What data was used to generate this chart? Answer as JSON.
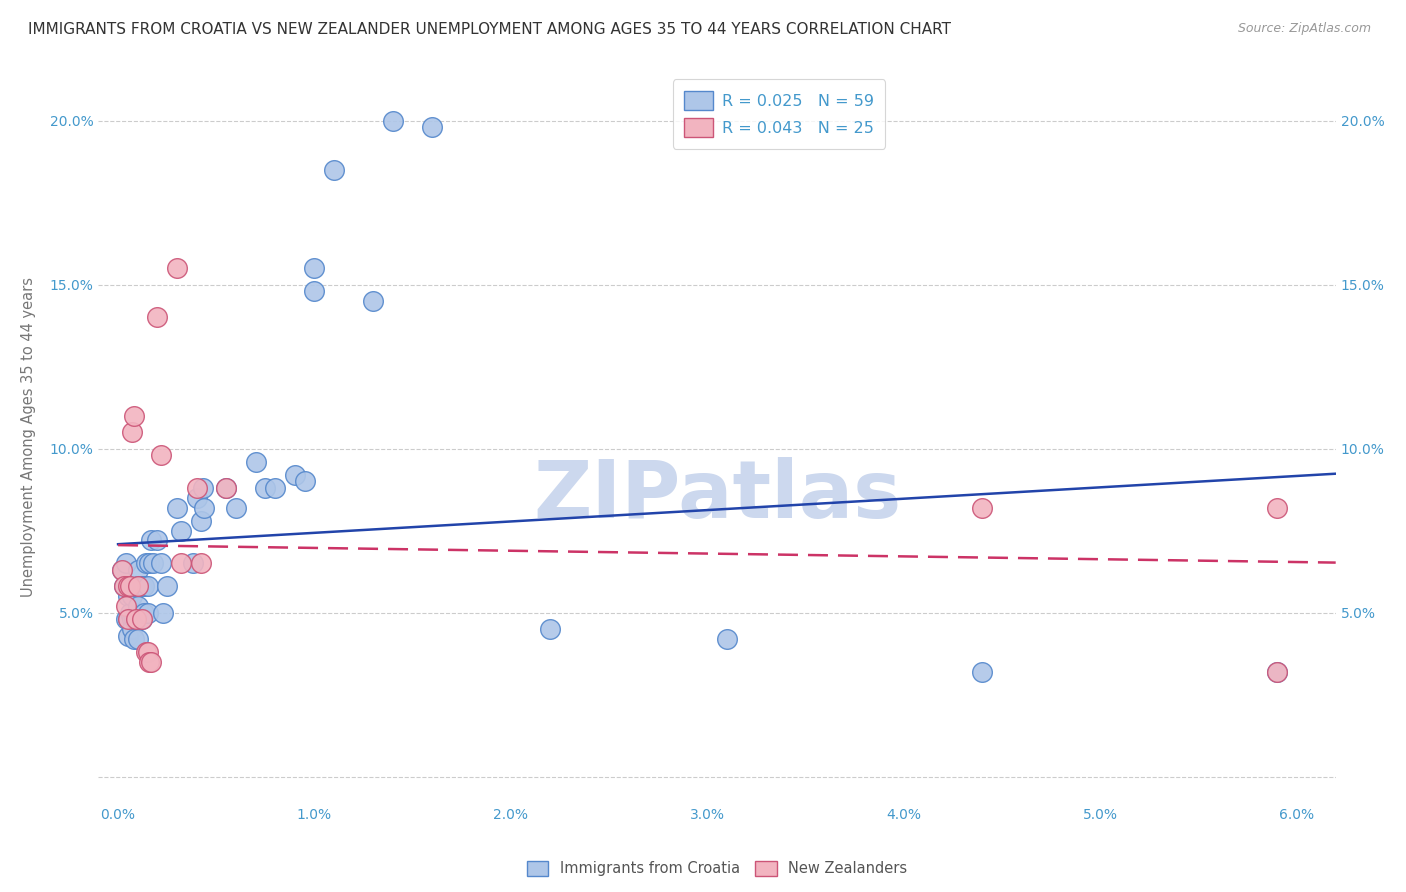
{
  "title": "IMMIGRANTS FROM CROATIA VS NEW ZEALANDER UNEMPLOYMENT AMONG AGES 35 TO 44 YEARS CORRELATION CHART",
  "source": "Source: ZipAtlas.com",
  "ylabel": "Unemployment Among Ages 35 to 44 years",
  "xlim": [
    -0.001,
    0.062
  ],
  "ylim": [
    -0.008,
    0.215
  ],
  "xticks": [
    0.0,
    0.01,
    0.02,
    0.03,
    0.04,
    0.05,
    0.06
  ],
  "xticklabels": [
    "0.0%",
    "1.0%",
    "2.0%",
    "3.0%",
    "4.0%",
    "5.0%",
    "6.0%"
  ],
  "yticks": [
    0.0,
    0.05,
    0.1,
    0.15,
    0.2
  ],
  "yticklabels_left": [
    "",
    "5.0%",
    "10.0%",
    "15.0%",
    "20.0%"
  ],
  "yticklabels_right": [
    "",
    "5.0%",
    "10.0%",
    "15.0%",
    "20.0%"
  ],
  "blue_color": "#aec6e8",
  "pink_color": "#f2b4c0",
  "blue_edge_color": "#5588cc",
  "pink_edge_color": "#cc5577",
  "trend_blue_color": "#2244aa",
  "trend_pink_color": "#cc3366",
  "legend_r_blue": "R = 0.025",
  "legend_n_blue": "N = 59",
  "legend_r_pink": "R = 0.043",
  "legend_n_pink": "N = 25",
  "blue_label": "Immigrants from Croatia",
  "pink_label": "New Zealanders",
  "watermark": "ZIPatlas",
  "watermark_color": "#ccd8ee",
  "blue_x": [
    0.0002,
    0.0003,
    0.0004,
    0.0004,
    0.0005,
    0.0005,
    0.0005,
    0.0006,
    0.0006,
    0.0007,
    0.0007,
    0.0007,
    0.0008,
    0.0008,
    0.0008,
    0.0009,
    0.0009,
    0.001,
    0.001,
    0.001,
    0.001,
    0.0012,
    0.0012,
    0.0013,
    0.0013,
    0.0014,
    0.0015,
    0.0015,
    0.0016,
    0.0017,
    0.0018,
    0.002,
    0.0022,
    0.0023,
    0.0025,
    0.003,
    0.0032,
    0.0038,
    0.004,
    0.0042,
    0.0043,
    0.0044,
    0.0055,
    0.006,
    0.007,
    0.0075,
    0.008,
    0.009,
    0.0095,
    0.01,
    0.01,
    0.011,
    0.013,
    0.014,
    0.016,
    0.022,
    0.031,
    0.044,
    0.059
  ],
  "blue_y": [
    0.063,
    0.058,
    0.065,
    0.048,
    0.055,
    0.048,
    0.043,
    0.058,
    0.05,
    0.048,
    0.055,
    0.045,
    0.058,
    0.048,
    0.042,
    0.058,
    0.048,
    0.063,
    0.058,
    0.052,
    0.042,
    0.058,
    0.048,
    0.058,
    0.05,
    0.065,
    0.058,
    0.05,
    0.065,
    0.072,
    0.065,
    0.072,
    0.065,
    0.05,
    0.058,
    0.082,
    0.075,
    0.065,
    0.085,
    0.078,
    0.088,
    0.082,
    0.088,
    0.082,
    0.096,
    0.088,
    0.088,
    0.092,
    0.09,
    0.155,
    0.148,
    0.185,
    0.145,
    0.2,
    0.198,
    0.045,
    0.042,
    0.032,
    0.032
  ],
  "pink_x": [
    0.0002,
    0.0003,
    0.0004,
    0.0005,
    0.0005,
    0.0006,
    0.0007,
    0.0008,
    0.0009,
    0.001,
    0.0012,
    0.0014,
    0.0015,
    0.0016,
    0.0017,
    0.002,
    0.0022,
    0.003,
    0.0032,
    0.004,
    0.0042,
    0.0055,
    0.044,
    0.059,
    0.059
  ],
  "pink_y": [
    0.063,
    0.058,
    0.052,
    0.058,
    0.048,
    0.058,
    0.105,
    0.11,
    0.048,
    0.058,
    0.048,
    0.038,
    0.038,
    0.035,
    0.035,
    0.14,
    0.098,
    0.155,
    0.065,
    0.088,
    0.065,
    0.088,
    0.082,
    0.032,
    0.082
  ],
  "axis_color": "#4499cc",
  "tick_color": "#4499cc",
  "grid_color": "#cccccc",
  "grid_style": "--",
  "title_color": "#333333",
  "title_fontsize": 11.0
}
